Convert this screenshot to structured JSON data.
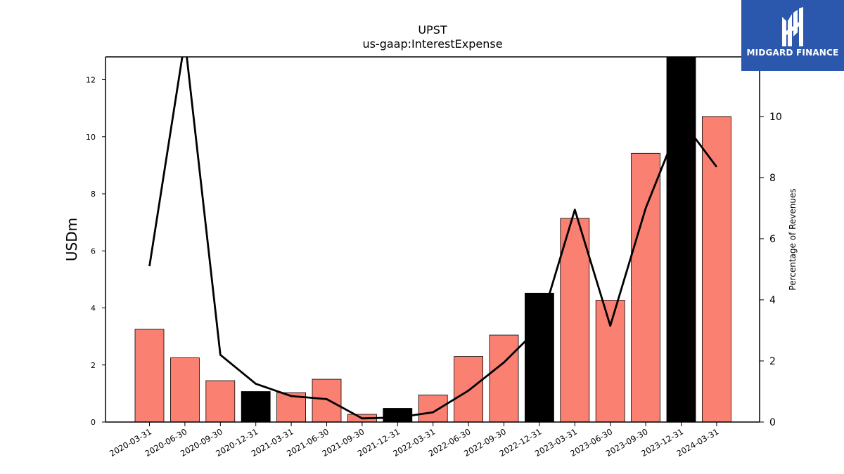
{
  "chart_data": {
    "type": "bar",
    "title": "UPST",
    "subtitle": "us-gaap:InterestExpense",
    "ylabel": "USDm",
    "y2label": "Percentage of Revenues",
    "ylim": [
      0,
      12.8
    ],
    "y2lim": [
      0,
      11.95
    ],
    "yticks": [
      0,
      2,
      4,
      6,
      8,
      10,
      12
    ],
    "y2ticks": [
      0,
      2,
      4,
      6,
      8,
      10
    ],
    "categories": [
      "2020-03-31",
      "2020-06-30",
      "2020-09-30",
      "2020-12-31",
      "2021-03-31",
      "2021-06-30",
      "2021-09-30",
      "2021-12-31",
      "2022-03-31",
      "2022-06-30",
      "2022-09-30",
      "2022-12-31",
      "2023-03-31",
      "2023-06-30",
      "2023-09-30",
      "2023-12-31",
      "2024-03-31"
    ],
    "series": [
      {
        "type": "bar",
        "axis": "left",
        "values": [
          3.25,
          2.25,
          1.45,
          1.07,
          1.03,
          1.5,
          0.27,
          0.48,
          0.95,
          2.3,
          3.05,
          4.52,
          7.14,
          4.27,
          9.42,
          12.8,
          10.71
        ],
        "colors": [
          "#fa8072",
          "#fa8072",
          "#fa8072",
          "#000000",
          "#fa8072",
          "#fa8072",
          "#fa8072",
          "#000000",
          "#fa8072",
          "#fa8072",
          "#fa8072",
          "#000000",
          "#fa8072",
          "#fa8072",
          "#fa8072",
          "#000000",
          "#fa8072"
        ]
      },
      {
        "type": "line",
        "axis": "right",
        "color": "#000000",
        "values": [
          5.1,
          12.5,
          2.2,
          1.25,
          0.85,
          0.75,
          0.12,
          0.15,
          0.32,
          1.03,
          1.95,
          3.1,
          6.95,
          3.15,
          7.0,
          9.9,
          8.35
        ]
      }
    ],
    "colors": {
      "bar": "#fa8072",
      "bar_highlight": "#000000",
      "line": "#000000"
    },
    "grid": false
  },
  "logo": {
    "text": "MIDGARD FINANCE"
  }
}
